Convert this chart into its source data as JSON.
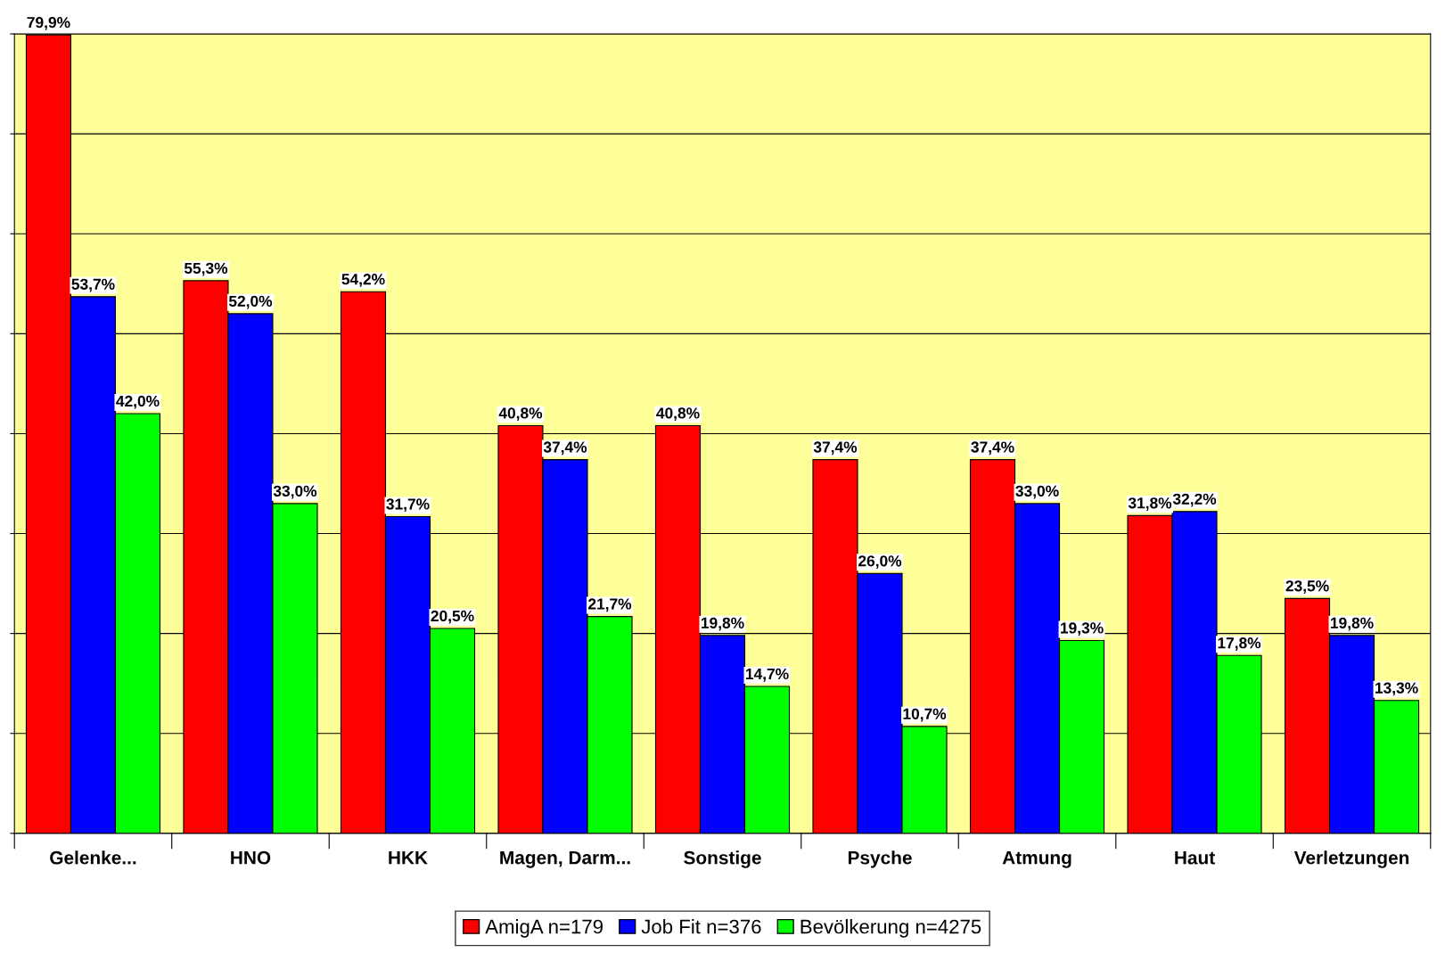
{
  "chart_data": {
    "type": "bar",
    "categories": [
      "Gelenke...",
      "HNO",
      "HKK",
      "Magen, Darm...",
      "Sonstige",
      "Psyche",
      "Atmung",
      "Haut",
      "Verletzungen"
    ],
    "series": [
      {
        "name": "AmigA n=179",
        "color": "#ff0000",
        "values": [
          79.9,
          55.3,
          54.2,
          40.8,
          40.8,
          37.4,
          37.4,
          31.8,
          23.5
        ],
        "value_labels": [
          "79,9%",
          "55,3%",
          "54,2%",
          "40,8%",
          "40,8%",
          "37,4%",
          "37,4%",
          "31,8%",
          "23,5%"
        ]
      },
      {
        "name": "Job Fit n=376",
        "color": "#0000ff",
        "values": [
          53.7,
          52.0,
          31.7,
          37.4,
          19.8,
          26.0,
          33.0,
          32.2,
          19.8
        ],
        "value_labels": [
          "53,7%",
          "52,0%",
          "31,7%",
          "37,4%",
          "19,8%",
          "26,0%",
          "33,0%",
          "32,2%",
          "19,8%"
        ]
      },
      {
        "name": "Bevölkerung n=4275",
        "color": "#00ff00",
        "values": [
          42.0,
          33.0,
          20.5,
          21.7,
          14.7,
          10.7,
          19.3,
          17.8,
          13.3
        ],
        "value_labels": [
          "42,0%",
          "33,0%",
          "20,5%",
          "21,7%",
          "14,7%",
          "10,7%",
          "19,3%",
          "17,8%",
          "13,3%"
        ]
      }
    ],
    "ylim": [
      0,
      80
    ],
    "yticks": [
      {
        "value": 0,
        "label": null
      },
      {
        "value": 10,
        "label": null
      },
      {
        "value": 20,
        "label": null
      },
      {
        "value": 30,
        "label": null
      },
      {
        "value": 40,
        "label": null
      },
      {
        "value": 50,
        "label": null
      },
      {
        "value": 60,
        "label": null
      },
      {
        "value": 70,
        "label": null
      },
      {
        "value": 80,
        "label": null
      }
    ],
    "grid": "y",
    "legend": "bottom",
    "tick_labels": "x"
  }
}
